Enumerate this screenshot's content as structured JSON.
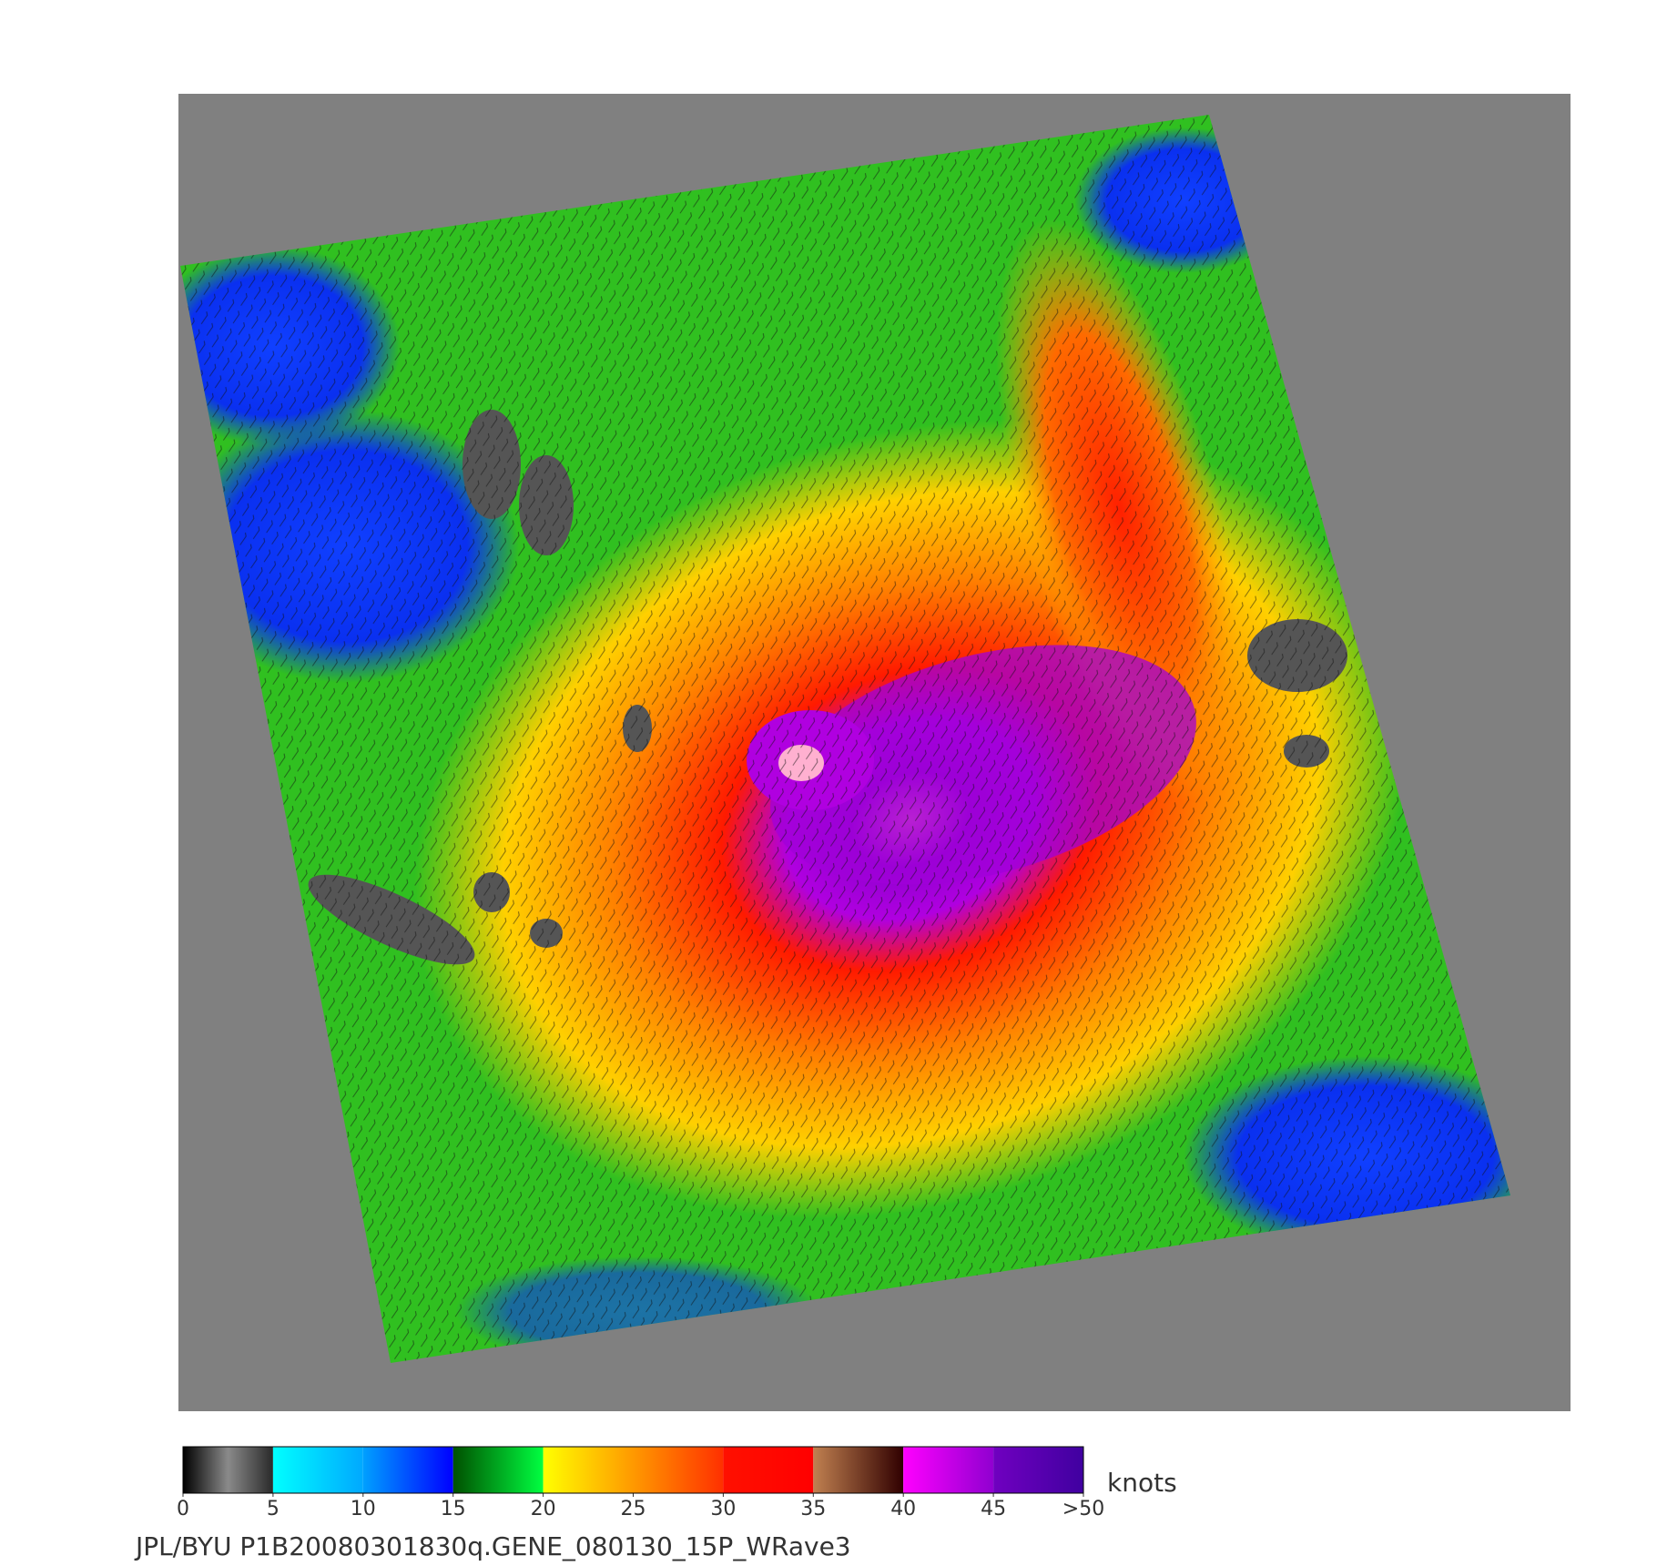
{
  "colorbar": {
    "lim": [
      0,
      50
    ],
    "unit": "knots",
    "ticks": [
      0,
      5,
      10,
      15,
      20,
      25,
      30,
      35,
      40,
      {
        "value": 50,
        "label": ">50"
      },
      45
    ],
    "colors": [
      [
        "#000000",
        "#8a8a8a",
        "#2a2a2a"
      ],
      [
        "#00ffff",
        "#00a8ff"
      ],
      [
        "#00a0ff",
        "#0000ff"
      ],
      [
        "#005000",
        "#00ff40"
      ],
      [
        "#ffff00",
        "#ff9900"
      ],
      [
        "#ff9900",
        "#ff3000"
      ],
      [
        "#ff1000",
        "#ff0000"
      ],
      [
        "#c08050",
        "#300000"
      ],
      [
        "#ff00ff",
        "#9000d0"
      ],
      [
        "#7000c0",
        "#4000a0"
      ]
    ]
  },
  "footer": "JPL/BYU  P1B20080301830q.GENE_080130_15P_WRave3"
}
